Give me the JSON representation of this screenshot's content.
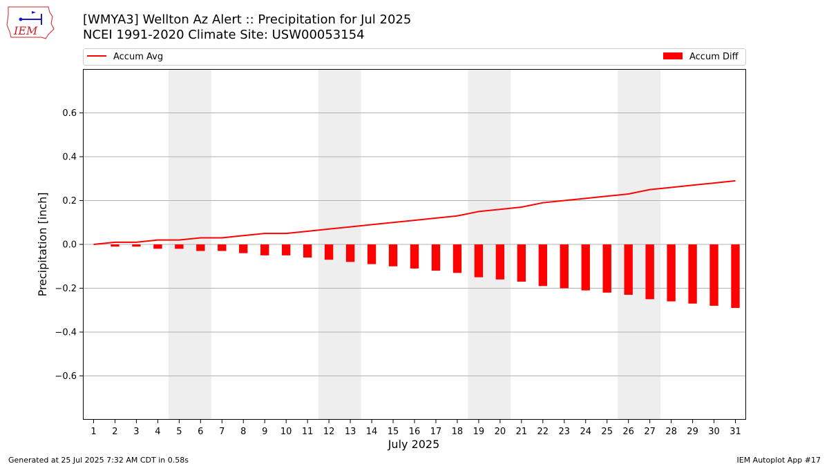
{
  "header": {
    "title_line1": "[WMYA3] Wellton Az Alert :: Precipitation for Jul 2025",
    "title_line2": "NCEI 1991-2020 Climate Site: USW00053154",
    "logo_text": "IEM"
  },
  "footer": {
    "left": "Generated at 25 Jul 2025 7:32 AM CDT in 0.58s",
    "right": "IEM Autoplot App #17"
  },
  "colors": {
    "series": "#ff0000",
    "weekend_band": "#eeeeee",
    "grid": "#b0b0b0",
    "logo_red": "#cc2222",
    "logo_blue": "#1a1acc"
  },
  "chart_data": {
    "type": "bar",
    "xlabel": "July 2025",
    "ylabel": "Precipitation [inch]",
    "ylim": [
      -0.8,
      0.8
    ],
    "xlim": [
      0.5,
      31.5
    ],
    "yticks": [
      -0.6,
      -0.4,
      -0.2,
      0.0,
      0.2,
      0.4,
      0.6
    ],
    "ytick_labels": [
      "−0.6",
      "−0.4",
      "−0.2",
      "0.0",
      "0.2",
      "0.4",
      "0.6"
    ],
    "grid": "horizontal",
    "legend_placement": "top (above plot)",
    "x": [
      1,
      2,
      3,
      4,
      5,
      6,
      7,
      8,
      9,
      10,
      11,
      12,
      13,
      14,
      15,
      16,
      17,
      18,
      19,
      20,
      21,
      22,
      23,
      24,
      25,
      26,
      27,
      28,
      29,
      30,
      31
    ],
    "weekend_bands": [
      [
        5,
        6
      ],
      [
        12,
        13
      ],
      [
        19,
        20
      ],
      [
        26,
        27
      ]
    ],
    "series": [
      {
        "name": "Accum Avg",
        "kind": "line",
        "values": [
          0.0,
          0.01,
          0.01,
          0.02,
          0.02,
          0.03,
          0.03,
          0.04,
          0.05,
          0.05,
          0.06,
          0.07,
          0.08,
          0.09,
          0.1,
          0.11,
          0.12,
          0.13,
          0.15,
          0.16,
          0.17,
          0.19,
          0.2,
          0.21,
          0.22,
          0.23,
          0.25,
          0.26,
          0.27,
          0.28,
          0.29
        ]
      },
      {
        "name": "Accum Diff",
        "kind": "bar",
        "values": [
          0.0,
          -0.01,
          -0.01,
          -0.02,
          -0.02,
          -0.03,
          -0.03,
          -0.04,
          -0.05,
          -0.05,
          -0.06,
          -0.07,
          -0.08,
          -0.09,
          -0.1,
          -0.11,
          -0.12,
          -0.13,
          -0.15,
          -0.16,
          -0.17,
          -0.19,
          -0.2,
          -0.21,
          -0.22,
          -0.23,
          -0.25,
          -0.26,
          -0.27,
          -0.28,
          -0.29
        ]
      }
    ]
  }
}
